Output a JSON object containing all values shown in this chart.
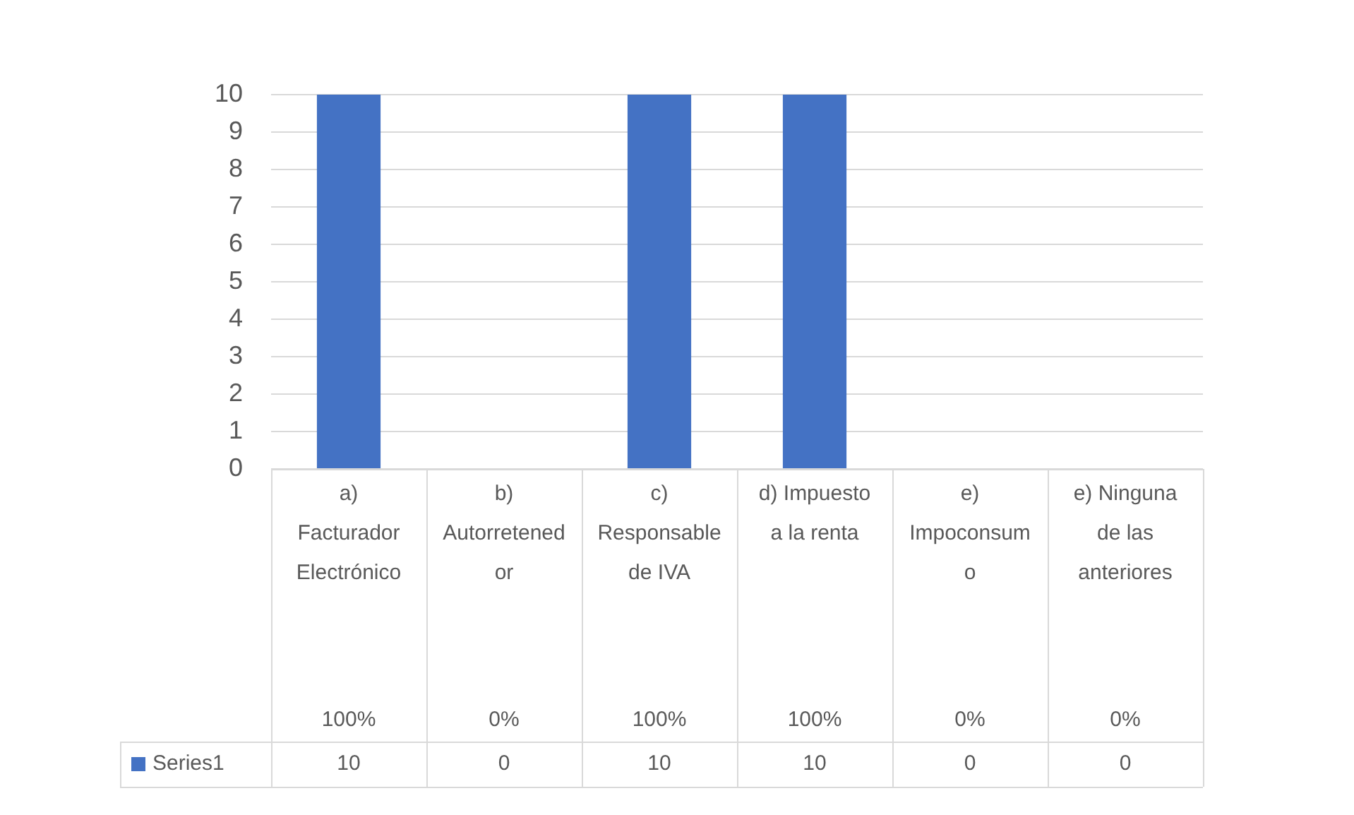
{
  "chart_data": {
    "type": "bar",
    "categories": [
      "a) Facturador Electrónico\n100%",
      "b) Autorretenedor\n0%",
      "c) Responsable de IVA\n100%",
      "d) Impuesto a la renta\n100%",
      "e) Impoconsumo\n0%",
      "e) Ninguna de las anteriores\n0%"
    ],
    "series": [
      {
        "name": "Series1",
        "color": "#4472c4",
        "values": [
          10,
          0,
          10,
          10,
          0,
          0
        ]
      }
    ],
    "ylim": [
      0,
      10
    ],
    "yticks": [
      0,
      1,
      2,
      3,
      4,
      5,
      6,
      7,
      8,
      9,
      10
    ],
    "grid": "y",
    "data_labels": true,
    "legend": "bottom left"
  }
}
